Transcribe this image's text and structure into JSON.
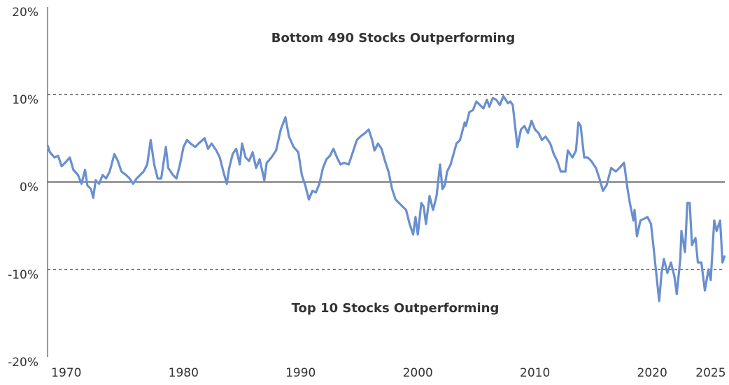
{
  "chart_data": {
    "type": "line",
    "annotations": [
      "Bottom 490 Stocks Outperforming",
      "Top 10 Stocks Outperforming"
    ],
    "xlim": [
      1968.4,
      2026.2
    ],
    "xticks": [
      1970,
      1980,
      1990,
      2000,
      2010,
      2020,
      2025
    ],
    "ylim": [
      -20,
      20
    ],
    "yticks": [
      {
        "value": 20,
        "label": "20%"
      },
      {
        "value": 10,
        "label": "10%"
      },
      {
        "value": 0,
        "label": "0%"
      },
      {
        "value": -10,
        "label": "-10%"
      },
      {
        "value": -20,
        "label": "-20%"
      }
    ],
    "reference_lines": [
      {
        "value": 10,
        "style": "dashed"
      },
      {
        "value": 0,
        "style": "solid"
      },
      {
        "value": -10,
        "style": "dashed"
      }
    ],
    "series": [
      {
        "color": "#6a8fcf",
        "x": [
          1968.4,
          1968.6,
          1969.0,
          1969.3,
          1969.6,
          1969.9,
          1970.3,
          1970.6,
          1971.0,
          1971.3,
          1971.6,
          1971.8,
          1972.1,
          1972.3,
          1972.5,
          1972.8,
          1973.1,
          1973.4,
          1973.7,
          1974.1,
          1974.4,
          1974.7,
          1975.1,
          1975.4,
          1975.7,
          1976.0,
          1976.3,
          1976.6,
          1976.9,
          1977.2,
          1977.5,
          1977.8,
          1978.1,
          1978.5,
          1978.7,
          1979.1,
          1979.4,
          1979.7,
          1980.0,
          1980.3,
          1980.6,
          1981.0,
          1981.3,
          1981.8,
          1982.1,
          1982.4,
          1982.8,
          1983.1,
          1983.4,
          1983.7,
          1983.9,
          1984.2,
          1984.5,
          1984.8,
          1985.0,
          1985.3,
          1985.6,
          1985.9,
          1986.2,
          1986.5,
          1986.9,
          1987.1,
          1987.5,
          1987.9,
          1988.3,
          1988.7,
          1989.0,
          1989.4,
          1989.8,
          1990.1,
          1990.4,
          1990.7,
          1991.0,
          1991.3,
          1991.6,
          1991.9,
          1992.2,
          1992.5,
          1992.8,
          1993.1,
          1993.4,
          1993.7,
          1994.1,
          1994.5,
          1994.8,
          1995.1,
          1995.5,
          1995.8,
          1996.1,
          1996.3,
          1996.6,
          1996.9,
          1997.2,
          1997.5,
          1997.8,
          1998.1,
          1998.4,
          1998.7,
          1999.0,
          1999.3,
          1999.6,
          1999.8,
          2000.0,
          2000.3,
          2000.5,
          2000.7,
          2001.0,
          2001.3,
          2001.6,
          2001.9,
          2002.1,
          2002.3,
          2002.5,
          2002.8,
          2003.3,
          2003.6,
          2004.0,
          2004.1,
          2004.4,
          2004.7,
          2005.0,
          2005.3,
          2005.6,
          2005.9,
          2006.1,
          2006.4,
          2006.7,
          2007.0,
          2007.3,
          2007.7,
          2007.9,
          2008.1,
          2008.5,
          2008.8,
          2009.1,
          2009.4,
          2009.7,
          2010.0,
          2010.3,
          2010.6,
          2010.9,
          2011.3,
          2011.6,
          2011.9,
          2012.2,
          2012.6,
          2012.8,
          2013.2,
          2013.5,
          2013.7,
          2013.9,
          2014.2,
          2014.5,
          2014.8,
          2015.2,
          2015.5,
          2015.8,
          2016.1,
          2016.5,
          2016.9,
          2017.2,
          2017.6,
          2017.9,
          2018.1,
          2018.4,
          2018.5,
          2018.7,
          2019.0,
          2019.3,
          2019.6,
          2019.9,
          2020.1,
          2020.3,
          2020.6,
          2020.8,
          2021.0,
          2021.3,
          2021.6,
          2021.9,
          2022.1,
          2022.4,
          2022.5,
          2022.8,
          2023.0,
          2023.2,
          2023.4,
          2023.7,
          2023.9,
          2024.2,
          2024.5,
          2024.8,
          2025.0,
          2025.3,
          2025.5,
          2025.8,
          2026.0,
          2026.2
        ],
        "values": [
          4.2,
          3.4,
          2.8,
          3.0,
          1.8,
          2.2,
          2.8,
          1.4,
          0.8,
          -0.2,
          1.4,
          -0.4,
          -0.8,
          -1.8,
          0.2,
          -0.2,
          0.8,
          0.4,
          1.2,
          3.2,
          2.4,
          1.2,
          0.8,
          0.4,
          -0.2,
          0.4,
          0.8,
          1.2,
          2.0,
          4.8,
          2.0,
          0.4,
          0.4,
          4.0,
          1.6,
          0.8,
          0.4,
          2.0,
          4.0,
          4.8,
          4.4,
          4.0,
          4.4,
          5.0,
          3.8,
          4.4,
          3.6,
          2.8,
          1.2,
          -0.2,
          1.6,
          3.2,
          3.8,
          2.0,
          4.4,
          2.8,
          2.4,
          3.4,
          1.6,
          2.6,
          0.2,
          2.2,
          2.8,
          3.6,
          6.0,
          7.4,
          5.2,
          4.0,
          3.4,
          0.8,
          -0.4,
          -2.0,
          -1.0,
          -1.2,
          -0.2,
          1.6,
          2.6,
          3.0,
          3.8,
          2.8,
          2.0,
          2.2,
          2.0,
          3.6,
          4.8,
          5.2,
          5.6,
          6.0,
          4.8,
          3.6,
          4.4,
          3.8,
          2.4,
          1.2,
          -0.8,
          -2.0,
          -2.4,
          -2.8,
          -3.2,
          -4.8,
          -6.0,
          -4.0,
          -6.0,
          -2.4,
          -2.8,
          -4.8,
          -1.6,
          -3.2,
          -1.6,
          2.0,
          -0.8,
          -0.4,
          1.2,
          2.0,
          4.4,
          4.8,
          6.8,
          6.4,
          8.0,
          8.2,
          9.2,
          8.8,
          8.4,
          9.4,
          8.6,
          9.6,
          9.4,
          8.8,
          9.8,
          9.0,
          9.2,
          8.8,
          4.0,
          6.0,
          6.4,
          5.6,
          7.0,
          6.0,
          5.6,
          4.8,
          5.2,
          4.4,
          3.2,
          2.4,
          1.2,
          1.2,
          3.6,
          2.8,
          3.6,
          6.8,
          6.4,
          2.8,
          2.8,
          2.4,
          1.6,
          0.4,
          -1.0,
          -0.4,
          1.6,
          1.2,
          1.6,
          2.2,
          -0.8,
          -2.4,
          -4.4,
          -3.2,
          -6.2,
          -4.4,
          -4.2,
          -4.0,
          -4.8,
          -7.2,
          -9.8,
          -13.6,
          -10.4,
          -8.8,
          -10.4,
          -9.2,
          -10.8,
          -12.8,
          -8.8,
          -5.6,
          -8.0,
          -2.4,
          -2.4,
          -7.2,
          -6.4,
          -9.2,
          -9.2,
          -12.4,
          -10.0,
          -11.2,
          -4.4,
          -5.6,
          -4.4,
          -9.2,
          -8.4
        ]
      }
    ]
  }
}
